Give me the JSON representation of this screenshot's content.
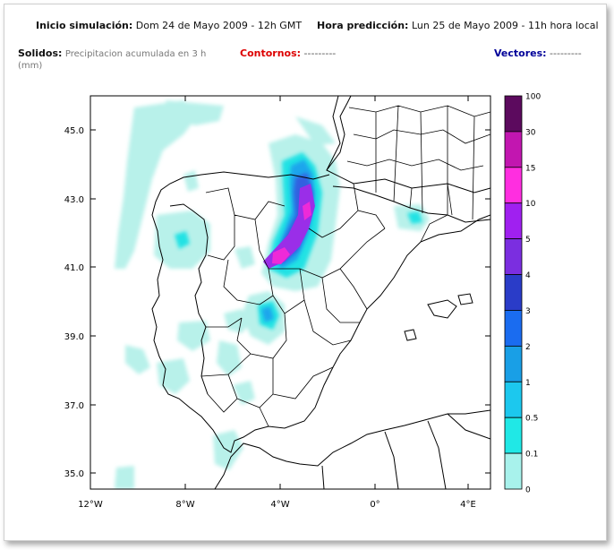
{
  "header": {
    "inicio_label": "Inicio simulación:",
    "inicio_value": "Dom 24 de Mayo 2009 - 12h GMT",
    "hora_label": "Hora predicción:",
    "hora_value": "Lun 25 de Mayo 2009 - 11h hora local"
  },
  "legend_row": {
    "solidos_label": "Solidos:",
    "solidos_value": "Precipitacion acumulada en 3 h",
    "solidos_unit": "(mm)",
    "contornos_label": "Contornos:",
    "contornos_value": "---------",
    "vectores_label": "Vectores:",
    "vectores_value": "---------"
  },
  "colors": {
    "contornos": "#dd0000",
    "vectores": "#000099",
    "solidos_value": "#777777"
  },
  "map": {
    "lat_ticks": [
      "45.0",
      "43.0",
      "41.0",
      "39.0",
      "37.0",
      "35.0"
    ],
    "lon_ticks": [
      "12°W",
      "8°W",
      "4°W",
      "0°",
      "4°E"
    ]
  },
  "colorbar": {
    "labels": [
      "100",
      "30",
      "15",
      "10",
      "5",
      "4",
      "3",
      "2",
      "1",
      "0.5",
      "0.1",
      "0"
    ],
    "colors": [
      "#5c0a5e",
      "#c216b0",
      "#ff2ee0",
      "#a020f0",
      "#7b2ee0",
      "#2a3cc8",
      "#1a6cf0",
      "#199fe6",
      "#1cc8ee",
      "#20e8e6",
      "#a8f2ec",
      "#ffffff"
    ]
  }
}
